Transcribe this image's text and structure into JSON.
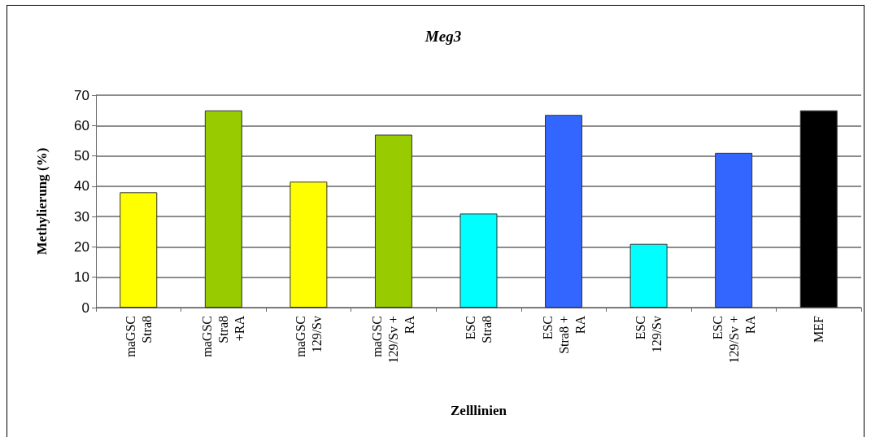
{
  "chart_data": {
    "type": "bar",
    "title": "Meg3",
    "xlabel": "Zelllinien",
    "ylabel": "Methylierung (%)",
    "categories": [
      "maGSC\nStra8",
      "maGSC\nStra8\n+RA",
      "maGSC\n129/Sv",
      "maGSC\n129/Sv +\nRA",
      "ESC\nStra8",
      "ESC\nStra8 +\nRA",
      "ESC\n129/Sv",
      "ESC\n129/Sv +\nRA",
      "MEF"
    ],
    "values": [
      38,
      65,
      41.5,
      57,
      31,
      63.5,
      21,
      51,
      65
    ],
    "colors": [
      "#ffff00",
      "#99cc00",
      "#ffff00",
      "#99cc00",
      "#00ffff",
      "#3366ff",
      "#00ffff",
      "#3366ff",
      "#000000"
    ],
    "ylim": [
      0,
      70
    ],
    "yticks": [
      0,
      10,
      20,
      30,
      40,
      50,
      60,
      70
    ],
    "grid": "y"
  }
}
